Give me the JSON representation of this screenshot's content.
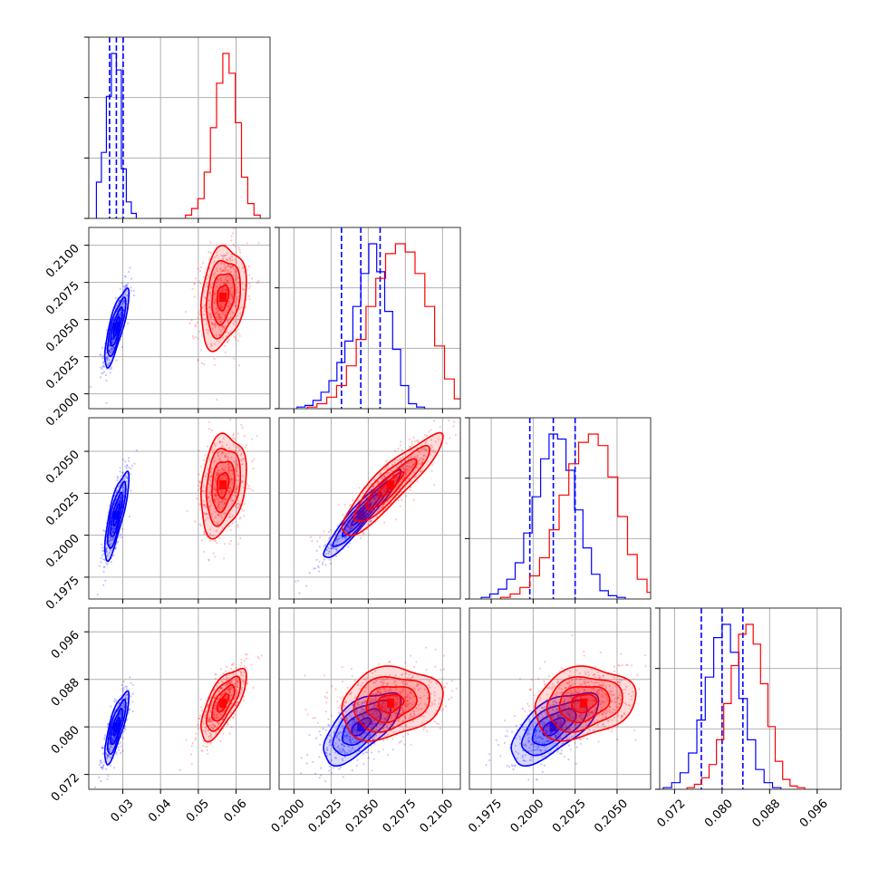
{
  "colors": {
    "set_a": "#0000ff",
    "set_b": "#ff0000",
    "grid": "#b0b0b0"
  },
  "chart_data": {
    "type": "corner",
    "grid": true,
    "n_params": 4,
    "params": [
      {
        "range": [
          0.021,
          0.069
        ],
        "ticks": [
          0.03,
          0.04,
          0.05,
          0.06
        ],
        "tick_labels": [
          "0.03",
          "0.04",
          "0.05",
          "0.06"
        ]
      },
      {
        "range": [
          0.199,
          0.2112
        ],
        "ticks": [
          0.2,
          0.2025,
          0.205,
          0.2075,
          0.21
        ],
        "tick_labels": [
          "0.2000",
          "0.2025",
          "0.2050",
          "0.2075",
          "0.2100"
        ]
      },
      {
        "range": [
          0.1962,
          0.207
        ],
        "ticks": [
          0.1975,
          0.2,
          0.2025,
          0.205
        ],
        "tick_labels": [
          "0.1975",
          "0.2000",
          "0.2025",
          "0.2050"
        ]
      },
      {
        "range": [
          0.0695,
          0.1
        ],
        "ticks": [
          0.072,
          0.08,
          0.088,
          0.096
        ],
        "tick_labels": [
          "0.072",
          "0.080",
          "0.088",
          "0.096"
        ]
      }
    ],
    "series": [
      {
        "color": "#0000ff",
        "mean": [
          0.0283,
          0.2045,
          0.2012,
          0.08
        ],
        "sigma": [
          0.0016,
          0.0013,
          0.0013,
          0.003
        ],
        "correlation": [
          [
            1.0,
            0.8,
            0.8,
            0.8
          ],
          [
            0.8,
            1.0,
            0.95,
            0.65
          ],
          [
            0.8,
            0.95,
            1.0,
            0.65
          ],
          [
            0.8,
            0.65,
            0.65,
            1.0
          ]
        ],
        "quantiles": [
          [
            0.0265,
            0.0283,
            0.0301
          ],
          [
            0.2032,
            0.2045,
            0.2058
          ],
          [
            0.1998,
            0.2012,
            0.2025
          ],
          [
            0.0765,
            0.08,
            0.0835
          ]
        ],
        "hist_weights": [
          [
            22,
            40,
            74,
            100,
            90,
            30,
            10,
            3
          ],
          [
            1,
            2,
            5,
            10,
            17,
            28,
            41,
            62,
            82,
            100,
            83,
            59,
            36,
            14,
            3,
            1
          ],
          [
            1,
            3,
            6,
            12,
            22,
            40,
            62,
            85,
            100,
            97,
            78,
            54,
            31,
            15,
            5,
            2,
            1
          ],
          [
            1,
            4,
            10,
            22,
            42,
            68,
            92,
            100,
            83,
            55,
            30,
            12,
            4,
            1
          ]
        ]
      },
      {
        "color": "#ff0000",
        "mean": [
          0.0565,
          0.2065,
          0.203,
          0.084
        ],
        "sigma": [
          0.003,
          0.0017,
          0.0015,
          0.003
        ],
        "correlation": [
          [
            1.0,
            0.25,
            0.25,
            0.7
          ],
          [
            0.25,
            1.0,
            0.9,
            0.2
          ],
          [
            0.25,
            0.9,
            1.0,
            0.2
          ],
          [
            0.7,
            0.2,
            0.2,
            1.0
          ]
        ],
        "quantiles": [],
        "hist_weights": [
          [
            2,
            6,
            12,
            28,
            55,
            82,
            100,
            88,
            58,
            25,
            9,
            2
          ],
          [
            1,
            3,
            7,
            14,
            26,
            42,
            62,
            79,
            94,
            100,
            95,
            82,
            62,
            38,
            18,
            6,
            1
          ],
          [
            1,
            3,
            7,
            14,
            25,
            42,
            63,
            82,
            95,
            100,
            93,
            74,
            50,
            27,
            12,
            4,
            1
          ],
          [
            1,
            3,
            7,
            15,
            30,
            52,
            75,
            94,
            100,
            88,
            64,
            38,
            17,
            6,
            2,
            1
          ]
        ]
      }
    ]
  }
}
